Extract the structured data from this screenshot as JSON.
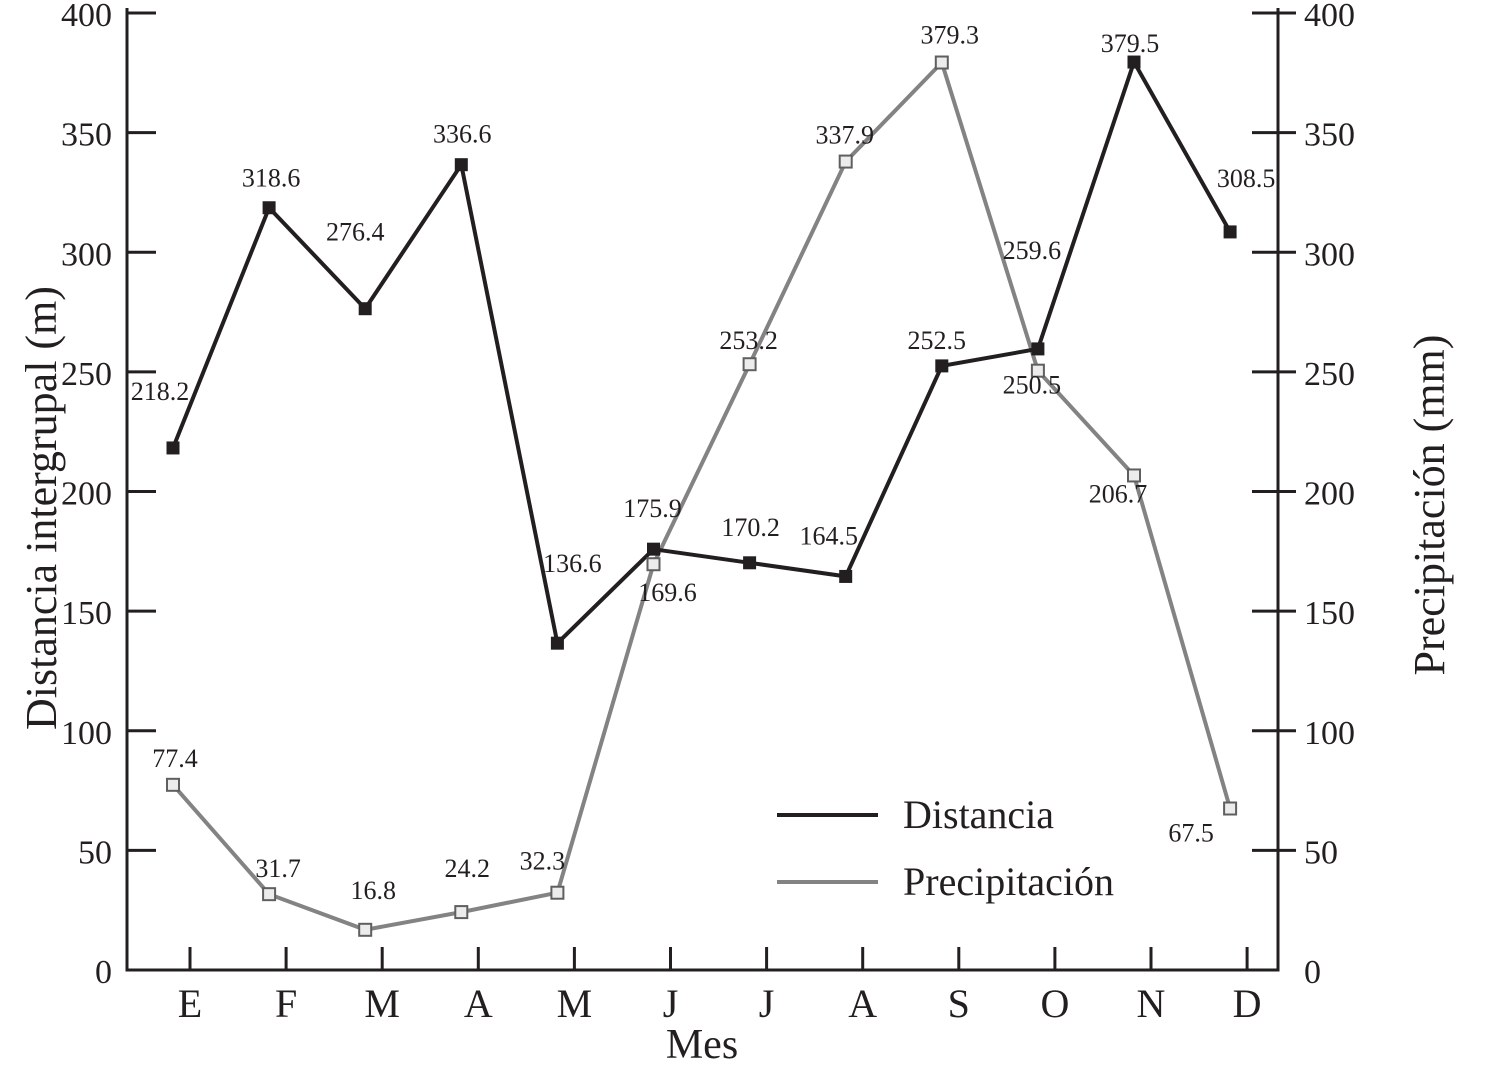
{
  "chart_data": {
    "type": "line",
    "title": "",
    "xlabel": "Mes",
    "ylabel_left": "Distancia intergrupal (m)",
    "ylabel_right": "Precipitación (mm)",
    "categories": [
      "E",
      "F",
      "M",
      "A",
      "M",
      "J",
      "J",
      "A",
      "S",
      "O",
      "N",
      "D"
    ],
    "y_axis_left": {
      "min": 0,
      "max": 400,
      "tick_step": 50,
      "ticks": [
        0,
        50,
        100,
        150,
        200,
        250,
        300,
        350,
        400
      ]
    },
    "y_axis_right": {
      "min": 0,
      "max": 400,
      "tick_step": 50,
      "ticks": [
        0,
        50,
        100,
        150,
        200,
        250,
        300,
        350,
        400
      ]
    },
    "grid": false,
    "legend": {
      "position": "inside-bottom-right"
    },
    "colors": {
      "distancia_line": "#231f20",
      "precipitacion_line": "#838383",
      "precipitacion_marker_fill": "#ececec",
      "precipitacion_marker_edge": "#5f5f5f",
      "text": "#231f20"
    },
    "series": [
      {
        "name": "Distancia",
        "axis": "left",
        "marker": "filled-square",
        "values": [
          218.2,
          318.6,
          276.4,
          336.6,
          136.6,
          175.9,
          170.2,
          164.5,
          252.5,
          259.6,
          379.5,
          308.5
        ],
        "point_labels": [
          "218.2",
          "318.6",
          "276.4",
          "336.6",
          "136.6",
          "175.9",
          "170.2",
          "164.5",
          "252.5",
          "259.6",
          "379.5",
          "308.5"
        ],
        "label_offsets": [
          [
            -13,
            -48
          ],
          [
            2,
            -21
          ],
          [
            -10,
            -68
          ],
          [
            1,
            -22
          ],
          [
            15,
            -71
          ],
          [
            -1,
            -32
          ],
          [
            1,
            -27
          ],
          [
            -17,
            -32
          ],
          [
            -5,
            -17
          ],
          [
            -6,
            -90
          ],
          [
            -4,
            -10
          ],
          [
            16,
            -45
          ]
        ]
      },
      {
        "name": "Precipitación",
        "axis": "right",
        "marker": "open-square",
        "values": [
          77.4,
          31.7,
          16.8,
          24.2,
          32.3,
          169.6,
          253.2,
          337.9,
          379.3,
          250.5,
          206.7,
          67.5
        ],
        "point_labels": [
          "77.4",
          "31.7",
          "16.8",
          "24.2",
          "32.3",
          "169.6",
          "253.2",
          "337.9",
          "379.3",
          "250.5",
          "206.7",
          "67.5"
        ],
        "label_offsets": [
          [
            2,
            -18
          ],
          [
            9,
            -17
          ],
          [
            8,
            -31
          ],
          [
            6,
            -35
          ],
          [
            -15,
            -23
          ],
          [
            14,
            37
          ],
          [
            -1,
            -15
          ],
          [
            -1,
            -18
          ],
          [
            8,
            -19
          ],
          [
            -6,
            23
          ],
          [
            -16,
            27
          ],
          [
            -39,
            33
          ]
        ]
      }
    ]
  }
}
